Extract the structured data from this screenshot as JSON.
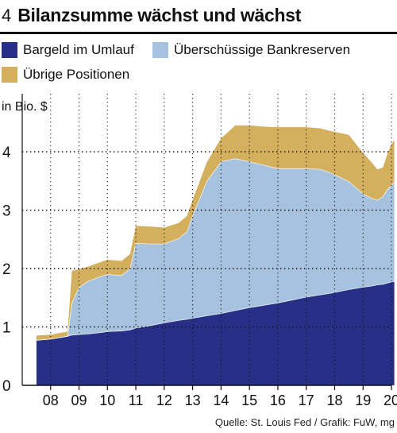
{
  "header": {
    "number": "4",
    "title": "Bilanzsumme wächst und wächst"
  },
  "legend": [
    {
      "label": "Bargeld im Umlauf",
      "color": "#282f86"
    },
    {
      "label": "Überschüssige Bankreserven",
      "color": "#a6c2de"
    },
    {
      "label": "Übrige Positionen",
      "color": "#d3af5e"
    }
  ],
  "unit_label": "in Bio. $",
  "source": "Quelle: St. Louis Fed / Grafik: FuW, mg",
  "chart_data": {
    "type": "area",
    "stacked": true,
    "ylabel": "in Bio. $",
    "ylim": [
      0,
      4.5
    ],
    "yticks": [
      0,
      1,
      2,
      3,
      4
    ],
    "xlim": [
      2007.5,
      2020.3
    ],
    "xtick_labels": [
      "08",
      "09",
      "10",
      "11",
      "12",
      "13",
      "14",
      "15",
      "16",
      "17",
      "18",
      "19",
      "20"
    ],
    "grid": "dotted-horizontal",
    "x": [
      2007.5,
      2008.0,
      2008.6,
      2008.75,
      2009.0,
      2009.3,
      2009.7,
      2010.0,
      2010.5,
      2010.8,
      2011.0,
      2011.5,
      2012.0,
      2012.5,
      2012.8,
      2013.0,
      2013.5,
      2014.0,
      2014.5,
      2015.0,
      2015.5,
      2016.0,
      2016.5,
      2017.0,
      2017.5,
      2017.9,
      2018.5,
      2019.0,
      2019.3,
      2019.5,
      2019.7,
      2019.85,
      2020.0,
      2020.1
    ],
    "series": [
      {
        "name": "Bargeld im Umlauf",
        "color": "#282f86",
        "values": [
          0.77,
          0.79,
          0.84,
          0.86,
          0.87,
          0.88,
          0.9,
          0.92,
          0.93,
          0.95,
          0.98,
          1.02,
          1.07,
          1.11,
          1.13,
          1.15,
          1.19,
          1.23,
          1.28,
          1.33,
          1.37,
          1.41,
          1.46,
          1.51,
          1.55,
          1.58,
          1.64,
          1.68,
          1.7,
          1.72,
          1.73,
          1.75,
          1.77,
          1.78
        ]
      },
      {
        "name": "Überschüssige Bankreserven",
        "color": "#a6c2de",
        "values": [
          0.0,
          0.0,
          0.0,
          0.55,
          0.8,
          0.9,
          0.95,
          0.98,
          0.95,
          1.05,
          1.45,
          1.4,
          1.35,
          1.4,
          1.5,
          1.75,
          2.3,
          2.6,
          2.6,
          2.5,
          2.4,
          2.3,
          2.25,
          2.2,
          2.15,
          2.05,
          1.85,
          1.6,
          1.5,
          1.45,
          1.5,
          1.6,
          1.65,
          1.7
        ]
      },
      {
        "name": "Übrige Positionen",
        "color": "#d3af5e",
        "values": [
          0.08,
          0.08,
          0.08,
          0.55,
          0.32,
          0.25,
          0.25,
          0.25,
          0.25,
          0.25,
          0.3,
          0.3,
          0.28,
          0.27,
          0.27,
          0.27,
          0.33,
          0.4,
          0.57,
          0.62,
          0.66,
          0.71,
          0.71,
          0.71,
          0.7,
          0.72,
          0.8,
          0.7,
          0.62,
          0.53,
          0.5,
          0.6,
          0.72,
          0.71
        ]
      }
    ]
  }
}
